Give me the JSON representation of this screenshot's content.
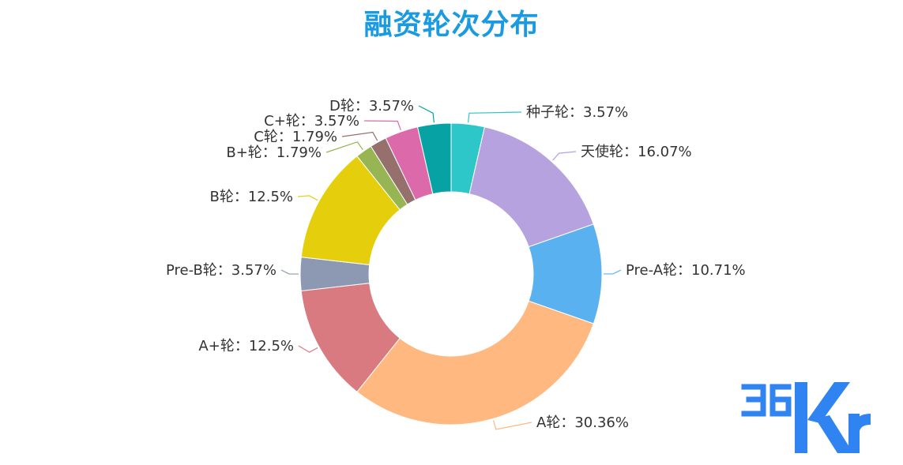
{
  "chart_data": {
    "type": "pie",
    "title": "融资轮次分布",
    "slices": [
      {
        "name": "种子轮",
        "value": 3.57,
        "label": "种子轮：3.57%",
        "color": "#2ec7c9"
      },
      {
        "name": "天使轮",
        "value": 16.07,
        "label": "天使轮：16.07%",
        "color": "#b6a2de"
      },
      {
        "name": "Pre-A轮",
        "value": 10.71,
        "label": "Pre-A轮：10.71%",
        "color": "#5ab1ef"
      },
      {
        "name": "A轮",
        "value": 30.36,
        "label": "A轮：30.36%",
        "color": "#ffb980"
      },
      {
        "name": "A+轮",
        "value": 12.5,
        "label": "A+轮：12.5%",
        "color": "#d87a80"
      },
      {
        "name": "Pre-B轮",
        "value": 3.57,
        "label": "Pre-B轮：3.57%",
        "color": "#8d98b3"
      },
      {
        "name": "B轮",
        "value": 12.5,
        "label": "B轮：12.5%",
        "color": "#e5cf0d"
      },
      {
        "name": "B+轮",
        "value": 1.79,
        "label": "B+轮：1.79%",
        "color": "#97b552"
      },
      {
        "name": "C轮",
        "value": 1.79,
        "label": "C轮：1.79%",
        "color": "#95706d"
      },
      {
        "name": "C+轮",
        "value": 3.57,
        "label": "C+轮：3.57%",
        "color": "#dc69aa"
      },
      {
        "name": "D轮",
        "value": 3.57,
        "label": "D轮：3.57%",
        "color": "#07a2a4"
      }
    ],
    "legend": "none",
    "labels": "outside"
  },
  "watermark": {
    "text": "36Kr",
    "color": "#2f84f2"
  }
}
